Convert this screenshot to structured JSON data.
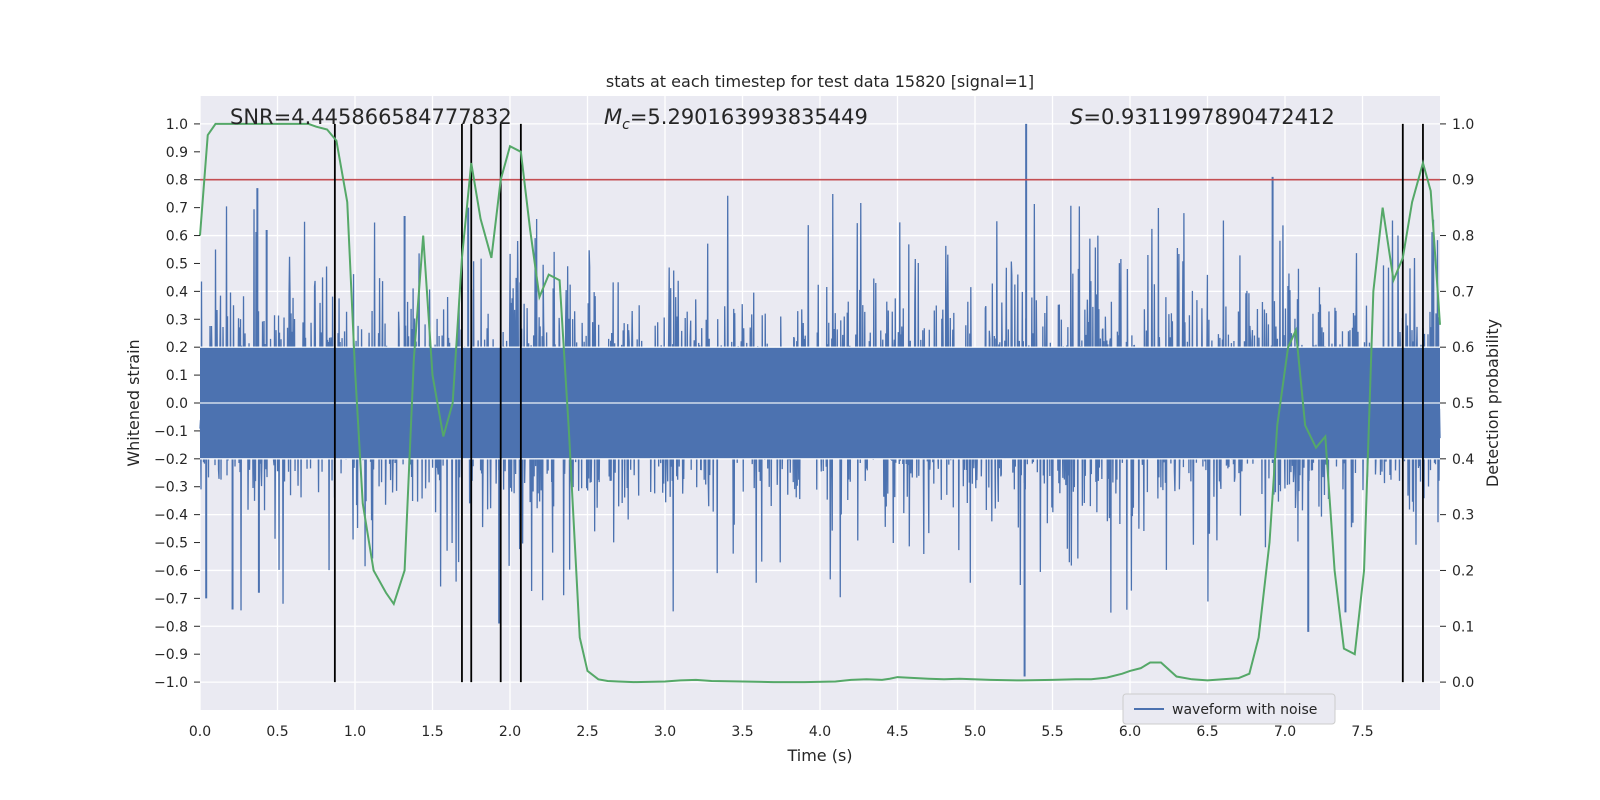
{
  "chart_data": {
    "type": "line",
    "title": "stats at each timestep for test data 15820 [signal=1]",
    "xlabel": "Time (s)",
    "ylabel": "Whitened strain",
    "y2label": "Detection probability",
    "xlim": [
      0.0,
      8.0
    ],
    "ylim": [
      -1.1,
      1.1
    ],
    "y2lim": [
      -0.05,
      1.05
    ],
    "xticks": [
      "0.0",
      "0.5",
      "1.0",
      "1.5",
      "2.0",
      "2.5",
      "3.0",
      "3.5",
      "4.0",
      "4.5",
      "5.0",
      "5.5",
      "6.0",
      "6.5",
      "7.0",
      "7.5"
    ],
    "yticks": [
      "1.0",
      "0.9",
      "0.8",
      "0.7",
      "0.6",
      "0.5",
      "0.4",
      "0.3",
      "0.2",
      "0.1",
      "0.0",
      "−0.1",
      "−0.2",
      "−0.3",
      "−0.4",
      "−0.5",
      "−0.6",
      "−0.7",
      "−0.8",
      "−0.9",
      "−1.0"
    ],
    "y2ticks": [
      "1.0",
      "0.9",
      "0.8",
      "0.7",
      "0.6",
      "0.5",
      "0.4",
      "0.3",
      "0.2",
      "0.1",
      "0.0"
    ],
    "grid": true,
    "annotations": {
      "snr": "SNR=4.445866584777832",
      "mc_symbol": "M",
      "mc_sub": "c",
      "mc_value": "=5.290163993835449",
      "s_symbol": "S",
      "s_value": "=0.9311997890472412"
    },
    "threshold": 0.9,
    "detection_times": [
      0.87,
      1.69,
      1.75,
      1.94,
      2.07,
      7.76,
      7.89
    ],
    "waveform": {
      "name": "waveform with noise",
      "color": "#4c72b0",
      "amplitude_band": 0.4,
      "peaks": [
        {
          "x": 0.04,
          "y": -0.7
        },
        {
          "x": 0.21,
          "y": -0.74
        },
        {
          "x": 0.37,
          "y": 0.77
        },
        {
          "x": 0.38,
          "y": -0.68
        },
        {
          "x": 0.43,
          "y": 0.62
        },
        {
          "x": 1.32,
          "y": 0.67
        },
        {
          "x": 1.73,
          "y": 0.7
        },
        {
          "x": 1.93,
          "y": -0.79
        },
        {
          "x": 5.33,
          "y": 1.0
        },
        {
          "x": 5.32,
          "y": -0.98
        },
        {
          "x": 6.92,
          "y": 0.81
        },
        {
          "x": 7.15,
          "y": -0.82
        },
        {
          "x": 7.39,
          "y": -0.75
        }
      ]
    },
    "detection_probability": {
      "color": "#55a868",
      "x": [
        0.0,
        0.05,
        0.1,
        0.2,
        0.3,
        0.4,
        0.5,
        0.6,
        0.7,
        0.75,
        0.82,
        0.88,
        0.95,
        1.0,
        1.05,
        1.12,
        1.2,
        1.25,
        1.32,
        1.38,
        1.44,
        1.5,
        1.57,
        1.63,
        1.69,
        1.75,
        1.81,
        1.88,
        1.94,
        2.0,
        2.07,
        2.13,
        2.19,
        2.25,
        2.32,
        2.38,
        2.45,
        2.5,
        2.57,
        2.63,
        2.7,
        2.8,
        3.0,
        3.1,
        3.2,
        3.3,
        3.5,
        3.7,
        3.9,
        4.1,
        4.2,
        4.3,
        4.4,
        4.45,
        4.5,
        4.7,
        4.8,
        4.9,
        5.1,
        5.3,
        5.5,
        5.65,
        5.75,
        5.85,
        5.95,
        6.0,
        6.07,
        6.13,
        6.2,
        6.3,
        6.4,
        6.5,
        6.7,
        6.77,
        6.83,
        6.9,
        6.95,
        7.02,
        7.07,
        7.13,
        7.2,
        7.26,
        7.32,
        7.38,
        7.45,
        7.51,
        7.57,
        7.63,
        7.7,
        7.76,
        7.82,
        7.89,
        7.94,
        8.0
      ],
      "y": [
        0.8,
        0.98,
        1.0,
        1.0,
        1.0,
        1.0,
        1.0,
        1.0,
        1.0,
        0.995,
        0.99,
        0.97,
        0.86,
        0.56,
        0.32,
        0.2,
        0.16,
        0.14,
        0.2,
        0.58,
        0.8,
        0.55,
        0.44,
        0.5,
        0.76,
        0.93,
        0.83,
        0.76,
        0.9,
        0.96,
        0.95,
        0.81,
        0.69,
        0.73,
        0.72,
        0.45,
        0.08,
        0.02,
        0.005,
        0.002,
        0.001,
        0.0,
        0.001,
        0.003,
        0.004,
        0.002,
        0.001,
        0.0,
        0.0,
        0.001,
        0.004,
        0.005,
        0.004,
        0.006,
        0.009,
        0.006,
        0.005,
        0.006,
        0.004,
        0.003,
        0.004,
        0.005,
        0.005,
        0.008,
        0.015,
        0.02,
        0.025,
        0.035,
        0.035,
        0.01,
        0.005,
        0.003,
        0.007,
        0.015,
        0.08,
        0.25,
        0.46,
        0.6,
        0.63,
        0.46,
        0.42,
        0.44,
        0.2,
        0.06,
        0.05,
        0.2,
        0.7,
        0.85,
        0.72,
        0.76,
        0.86,
        0.93,
        0.88,
        0.64
      ]
    }
  }
}
